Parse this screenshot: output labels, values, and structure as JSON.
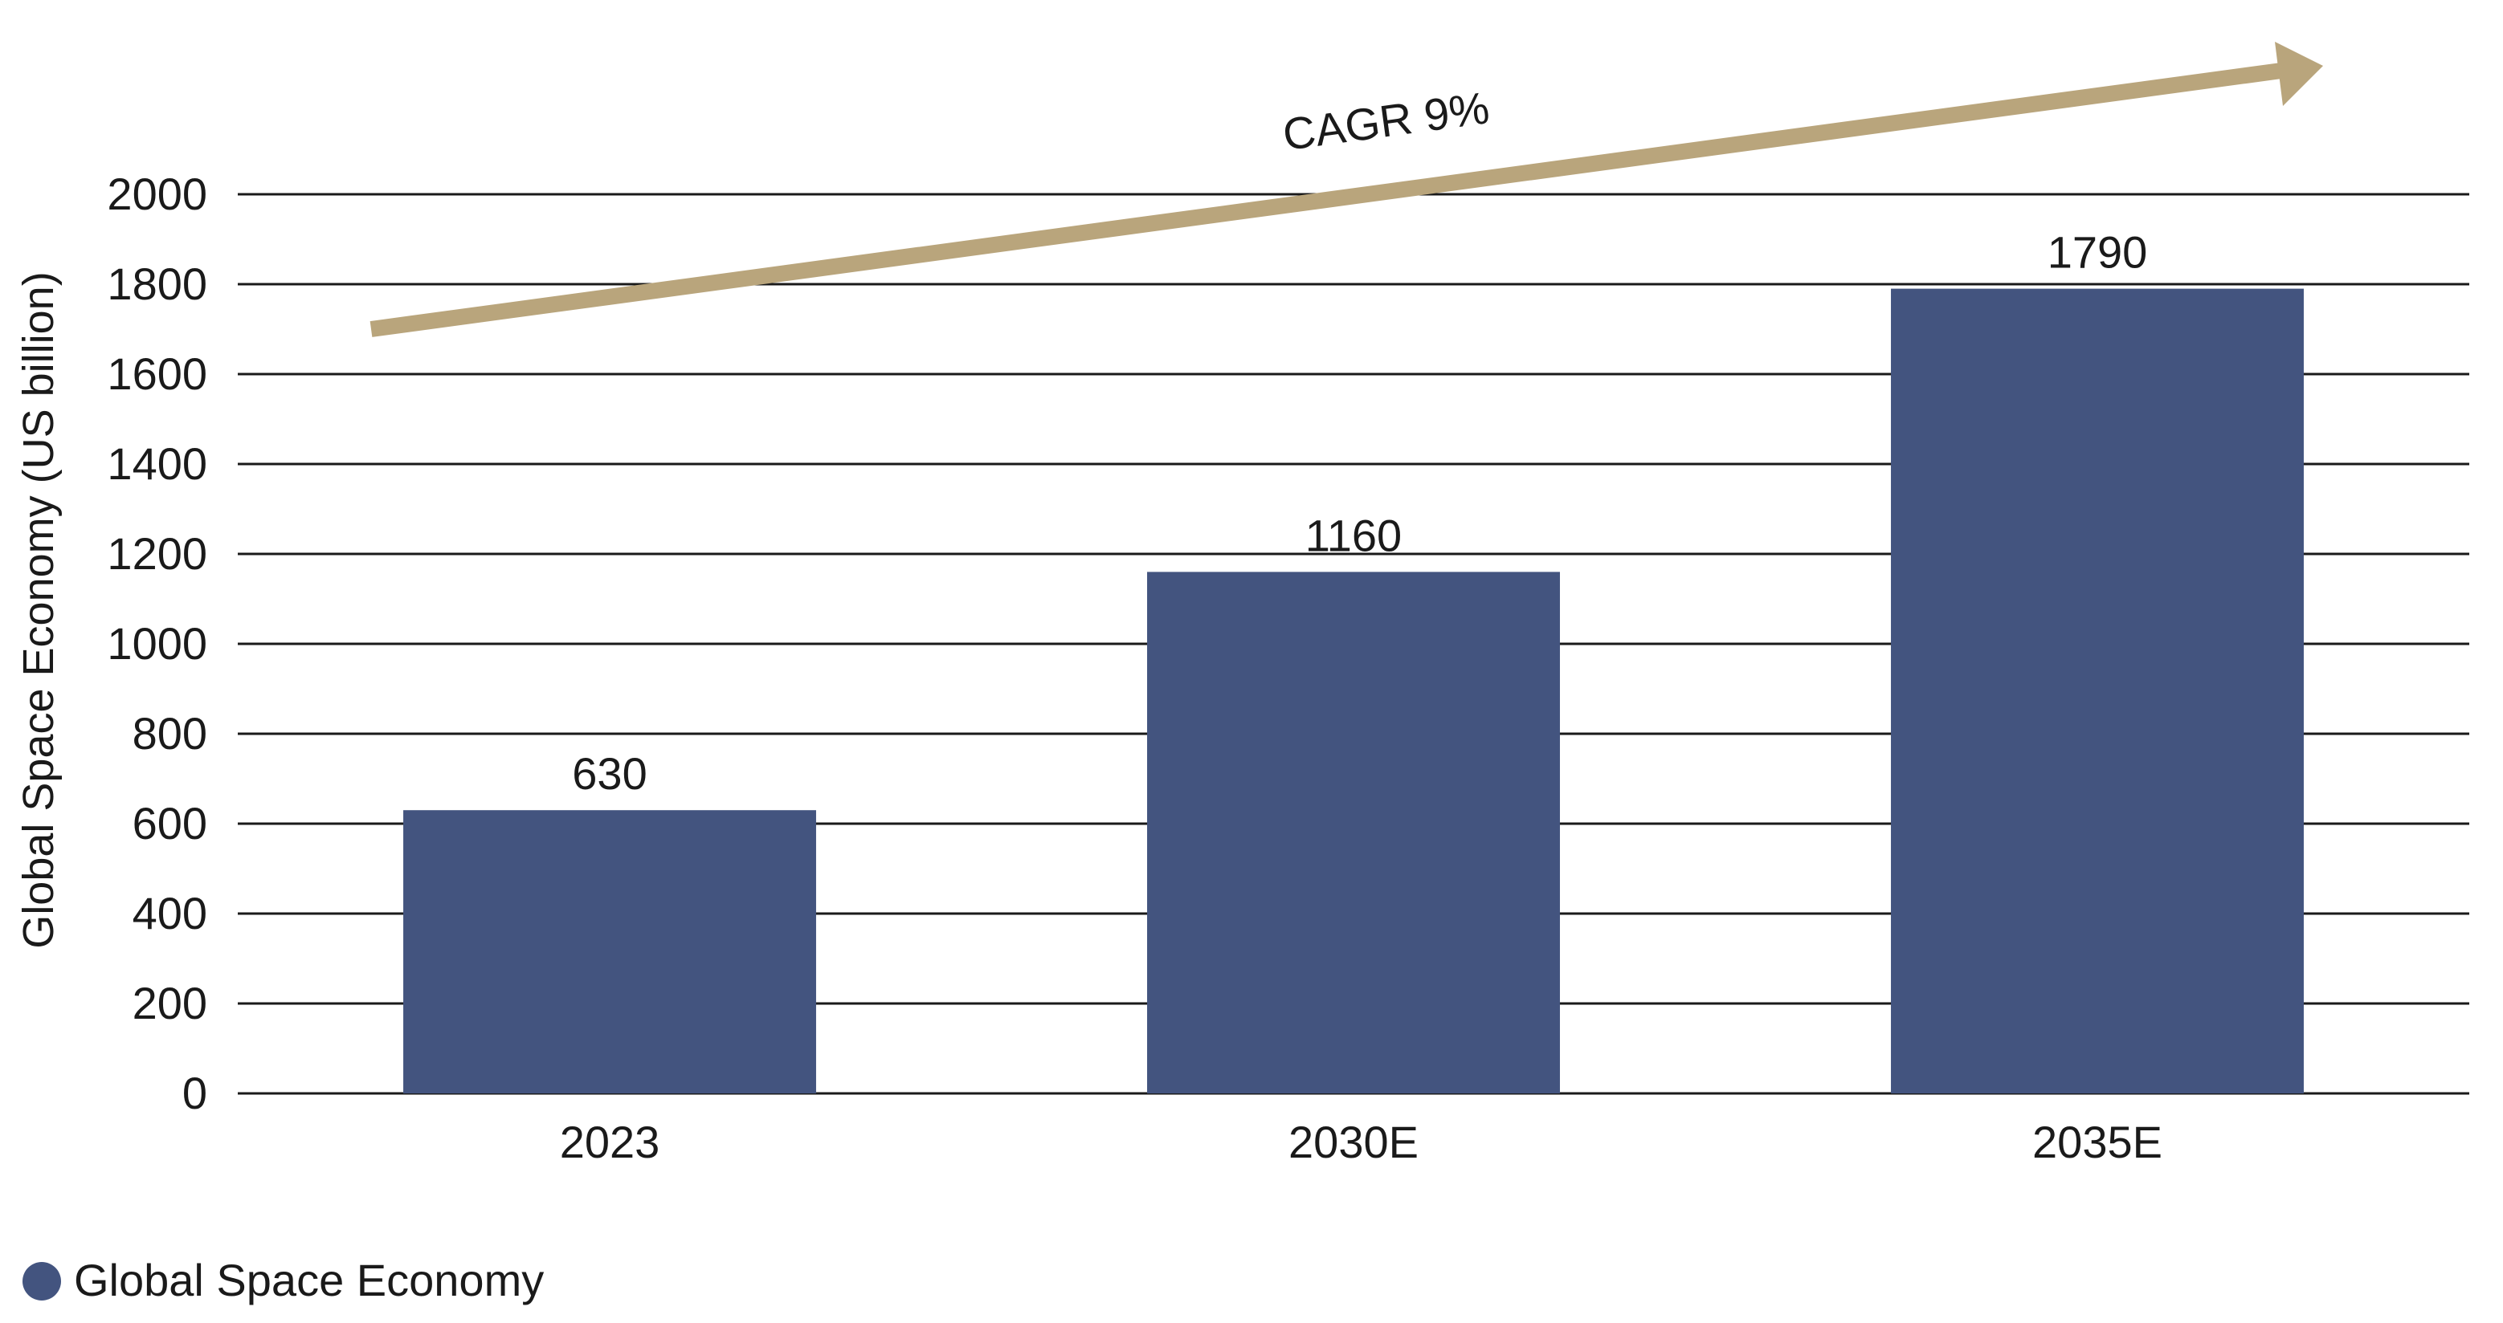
{
  "chart_data": {
    "type": "bar",
    "title": "",
    "categories": [
      "2023",
      "2030E",
      "2035E"
    ],
    "series": [
      {
        "name": "Global Space Economy",
        "values": [
          630,
          1160,
          1790
        ]
      }
    ],
    "data_labels": [
      "630",
      "1160",
      "1790"
    ],
    "xlabel": "",
    "ylabel": "Global Space Economy (US billion)",
    "ylim": [
      0,
      2000
    ],
    "yticks": [
      0,
      200,
      400,
      600,
      800,
      1000,
      1200,
      1400,
      1600,
      1800,
      2000
    ],
    "grid": true,
    "legend_position": "bottom-left",
    "annotation": {
      "text": "CAGR 9%",
      "type": "trend-arrow"
    },
    "colors": {
      "bar": "#43547f",
      "arrow": "#b9a57c",
      "grid": "#1a1a1a"
    }
  }
}
